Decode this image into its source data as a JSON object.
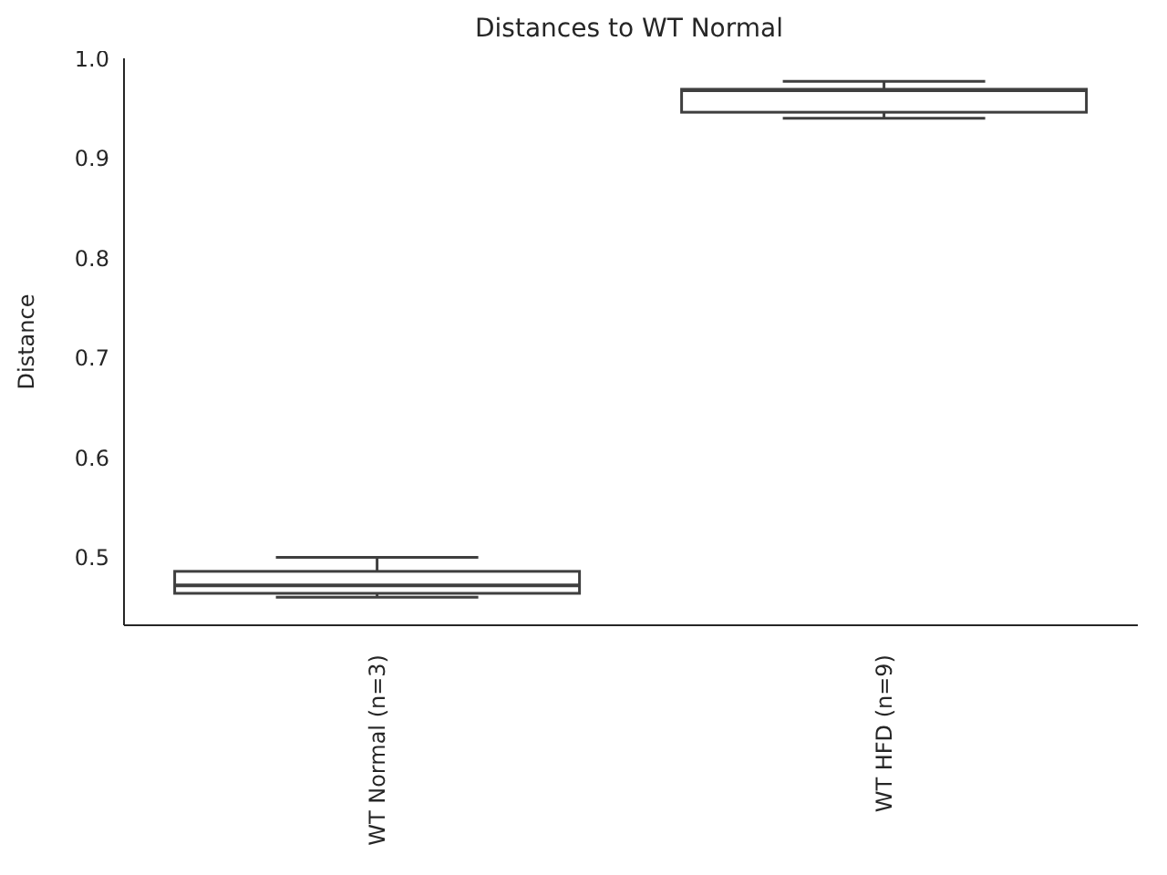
{
  "chart_data": {
    "type": "box",
    "title": "Distances to WT Normal",
    "ylabel": "Distance",
    "categories": [
      "WT Normal (n=3)",
      "WT HFD (n=9)"
    ],
    "color": "#3f3f3f",
    "boxes": [
      {
        "low": 0.46,
        "q1": 0.464,
        "median": 0.472,
        "q3": 0.486,
        "high": 0.5
      },
      {
        "low": 0.94,
        "q1": 0.946,
        "median": 0.968,
        "q3": 0.969,
        "high": 0.977
      }
    ],
    "ylim": [
      0.432,
      1.0
    ],
    "yticks": [
      0.5,
      0.6,
      0.7,
      0.8,
      0.9,
      {
        "value": 1,
        "label": "1.0"
      }
    ],
    "grid": false,
    "legend": false
  }
}
